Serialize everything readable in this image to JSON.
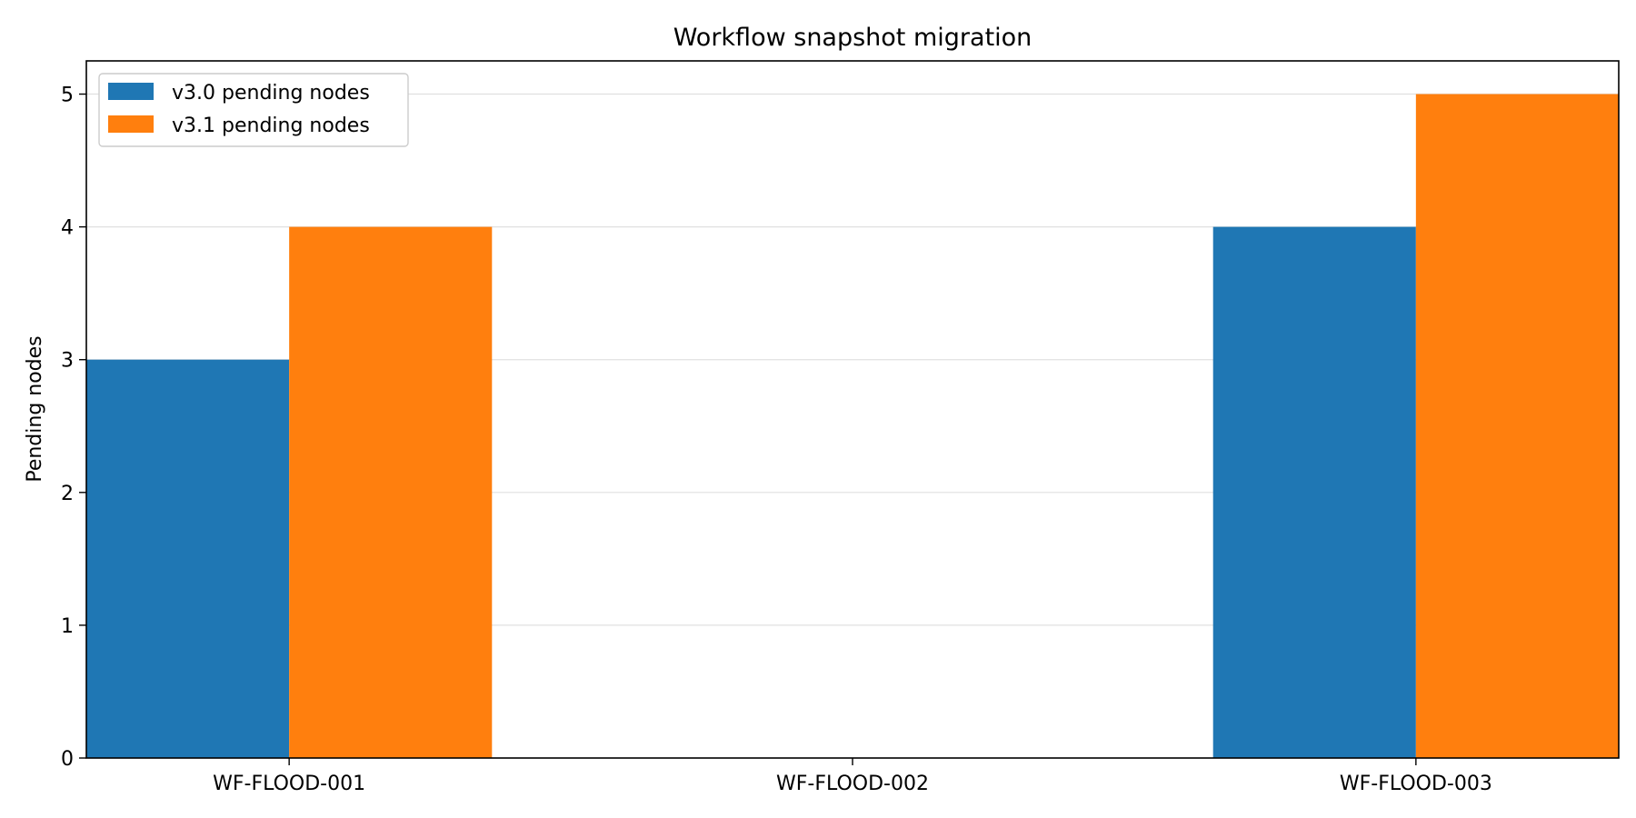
{
  "chart_data": {
    "type": "bar",
    "title": "Workflow snapshot migration",
    "xlabel": "",
    "ylabel": "Pending nodes",
    "categories": [
      "WF-FLOOD-001",
      "WF-FLOOD-002",
      "WF-FLOOD-003"
    ],
    "series": [
      {
        "name": "v3.0 pending nodes",
        "values": [
          3,
          0,
          4
        ],
        "color": "#1f77b4"
      },
      {
        "name": "v3.1 pending nodes",
        "values": [
          4,
          0,
          5
        ],
        "color": "#ff7f0e"
      }
    ],
    "ylim": [
      0,
      5.25
    ],
    "yticks": [
      0,
      1,
      2,
      3,
      4,
      5
    ],
    "grid": "horizontal",
    "legend": "top-left"
  }
}
